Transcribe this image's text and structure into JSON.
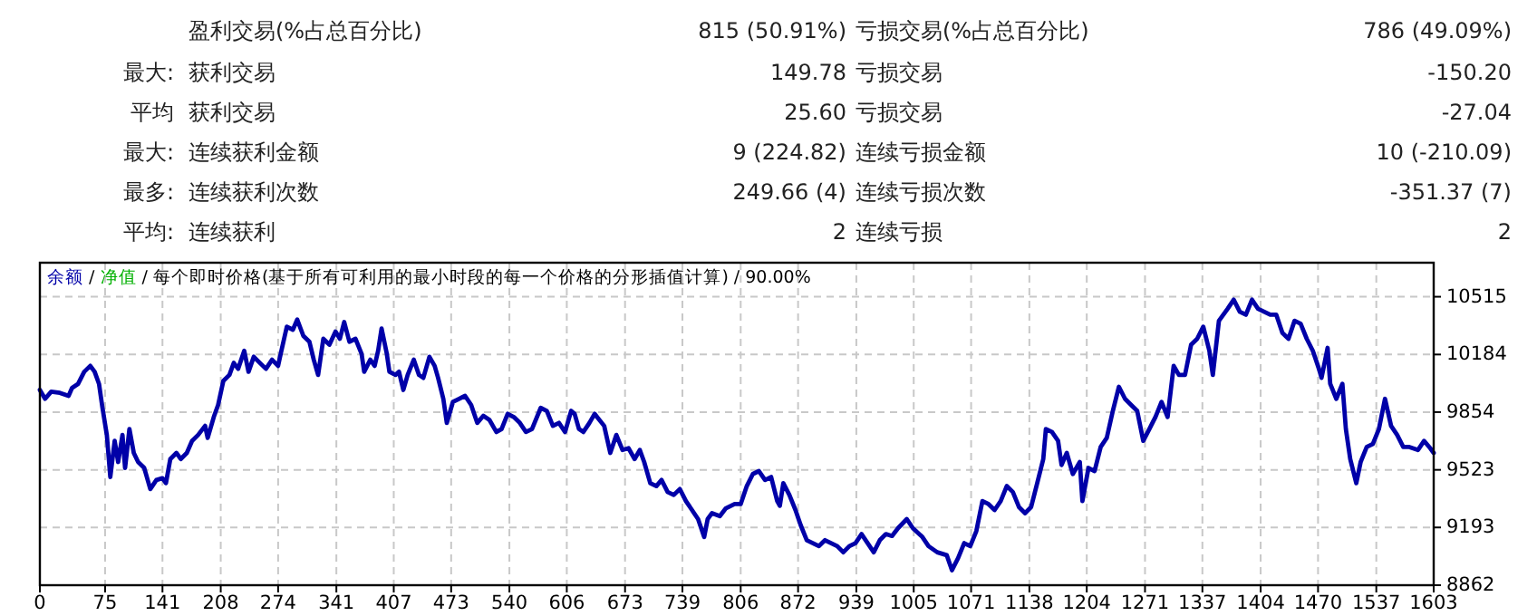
{
  "chart_data": {
    "type": "line",
    "subtitle": "/ 每个即时价格(基于所有可利用的最小时段的每一个价格的分形插值计算) / 90.00%",
    "legend": "top left",
    "grid": true,
    "xlim": [
      0,
      1603
    ],
    "ylim": [
      8862,
      10710
    ],
    "xticks": [
      0,
      75,
      141,
      208,
      274,
      341,
      407,
      473,
      540,
      606,
      673,
      739,
      806,
      872,
      939,
      1005,
      1071,
      1138,
      1204,
      1271,
      1337,
      1404,
      1470,
      1537,
      1603
    ],
    "yticks": [
      8862,
      9193,
      9523,
      9854,
      10184,
      10515
    ],
    "annotations": [
      "盈利交易(%占总百分比)",
      "815 (50.91%)",
      "亏损交易(%占总百分比)",
      "786 (49.09%)",
      "最大:",
      "获利交易",
      "149.78",
      "亏损交易",
      "-150.20",
      "平均",
      "获利交易",
      "25.60",
      "亏损交易",
      "-27.04",
      "最大:",
      "连续获利金额",
      "9 (224.82)",
      "连续亏损金额",
      "10 (-210.09)",
      "最多:",
      "连续获利次数",
      "249.66 (4)",
      "连续亏损次数",
      "-351.37 (7)",
      "平均:",
      "连续获利",
      "2",
      "连续亏损",
      "2",
      "/"
    ],
    "x": [
      0,
      6,
      13,
      23,
      33,
      37,
      44,
      51,
      58,
      63,
      68,
      72,
      77,
      81,
      86,
      90,
      95,
      98,
      103,
      108,
      113,
      120,
      127,
      134,
      141,
      145,
      150,
      157,
      162,
      169,
      175,
      182,
      190,
      193,
      200,
      205,
      211,
      218,
      223,
      228,
      235,
      240,
      246,
      253,
      260,
      267,
      274,
      277,
      284,
      291,
      296,
      303,
      310,
      315,
      320,
      326,
      333,
      340,
      345,
      350,
      356,
      363,
      370,
      373,
      380,
      385,
      389,
      393,
      399,
      402,
      409,
      413,
      418,
      423,
      430,
      436,
      441,
      448,
      454,
      458,
      464,
      468,
      475,
      482,
      489,
      496,
      503,
      510,
      517,
      525,
      531,
      538,
      545,
      552,
      559,
      566,
      576,
      583,
      590,
      597,
      604,
      611,
      615,
      620,
      625,
      632,
      638,
      642,
      649,
      656,
      663,
      670,
      677,
      684,
      690,
      695,
      702,
      709,
      715,
      722,
      729,
      736,
      743,
      750,
      757,
      764,
      768,
      773,
      782,
      789,
      799,
      806,
      813,
      820,
      827,
      834,
      841,
      848,
      851,
      855,
      862,
      869,
      875,
      882,
      889,
      896,
      903,
      910,
      917,
      924,
      931,
      938,
      945,
      952,
      959,
      966,
      973,
      980,
      987,
      997,
      1004,
      1015,
      1022,
      1032,
      1043,
      1049,
      1056,
      1063,
      1070,
      1077,
      1084,
      1091,
      1098,
      1105,
      1112,
      1119,
      1126,
      1133,
      1140,
      1147,
      1154,
      1157,
      1164,
      1171,
      1175,
      1181,
      1188,
      1196,
      1199,
      1206,
      1213,
      1220,
      1227,
      1234,
      1241,
      1248,
      1255,
      1262,
      1269,
      1276,
      1283,
      1290,
      1297,
      1304,
      1310,
      1317,
      1324,
      1331,
      1338,
      1345,
      1349,
      1356,
      1366,
      1373,
      1380,
      1387,
      1394,
      1401,
      1408,
      1415,
      1422,
      1429,
      1436,
      1443,
      1450,
      1457,
      1464,
      1471,
      1474,
      1481,
      1484,
      1491,
      1498,
      1502,
      1507,
      1514,
      1519,
      1526,
      1533,
      1540,
      1547,
      1554,
      1561,
      1568,
      1575,
      1585,
      1592,
      1599,
      1603
    ],
    "series": [
      {
        "name": "余额",
        "color": "#0000a8",
        "values": [
          9981,
          9930,
          9971,
          9964,
          9947,
          9992,
          10016,
          10085,
          10119,
          10085,
          10016,
          9878,
          9723,
          9482,
          9689,
          9568,
          9723,
          9534,
          9757,
          9620,
          9568,
          9534,
          9413,
          9465,
          9475,
          9447,
          9585,
          9620,
          9585,
          9620,
          9689,
          9723,
          9775,
          9706,
          9826,
          9895,
          10033,
          10067,
          10136,
          10102,
          10205,
          10085,
          10171,
          10136,
          10102,
          10154,
          10119,
          10188,
          10343,
          10326,
          10384,
          10291,
          10257,
          10154,
          10067,
          10274,
          10240,
          10315,
          10274,
          10370,
          10257,
          10274,
          10188,
          10085,
          10154,
          10119,
          10205,
          10333,
          10188,
          10085,
          10067,
          10085,
          9981,
          10067,
          10154,
          10067,
          10050,
          10171,
          10119,
          10050,
          9930,
          9792,
          9912,
          9930,
          9947,
          9895,
          9792,
          9833,
          9809,
          9740,
          9757,
          9844,
          9826,
          9792,
          9740,
          9757,
          9878,
          9861,
          9775,
          9792,
          9740,
          9861,
          9844,
          9757,
          9740,
          9792,
          9844,
          9819,
          9775,
          9620,
          9723,
          9637,
          9647,
          9585,
          9637,
          9568,
          9447,
          9430,
          9465,
          9396,
          9379,
          9413,
          9344,
          9293,
          9241,
          9138,
          9241,
          9275,
          9258,
          9303,
          9327,
          9327,
          9430,
          9499,
          9516,
          9465,
          9482,
          9344,
          9317,
          9447,
          9379,
          9293,
          9206,
          9120,
          9103,
          9086,
          9120,
          9103,
          9086,
          9051,
          9086,
          9103,
          9155,
          9103,
          9051,
          9120,
          9155,
          9144,
          9189,
          9241,
          9189,
          9138,
          9086,
          9051,
          9034,
          8948,
          9017,
          9103,
          9086,
          9172,
          9344,
          9327,
          9293,
          9344,
          9430,
          9396,
          9310,
          9275,
          9310,
          9447,
          9585,
          9757,
          9740,
          9689,
          9551,
          9620,
          9499,
          9568,
          9344,
          9534,
          9516,
          9654,
          9706,
          9861,
          9999,
          9930,
          9895,
          9861,
          9689,
          9757,
          9826,
          9912,
          9826,
          10119,
          10067,
          10067,
          10240,
          10274,
          10343,
          10205,
          10067,
          10377,
          10446,
          10498,
          10429,
          10412,
          10498,
          10446,
          10429,
          10412,
          10412,
          10308,
          10274,
          10377,
          10360,
          10274,
          10205,
          10102,
          10050,
          10222,
          10016,
          9930,
          10016,
          9757,
          9585,
          9447,
          9568,
          9654,
          9671,
          9757,
          9930,
          9775,
          9723,
          9654,
          9654,
          9637,
          9689,
          9647,
          9620
        ]
      },
      {
        "name": "净值",
        "color": "#00b000",
        "values": [
          null,
          null,
          null,
          null,
          null,
          null,
          null,
          null,
          null,
          null,
          null,
          null,
          null,
          null,
          null,
          null,
          null,
          null,
          null,
          null,
          null,
          null,
          null,
          null,
          null,
          null,
          null,
          null,
          null,
          null,
          null,
          null,
          null,
          null,
          null,
          null,
          null,
          null,
          null,
          null,
          null,
          null,
          null,
          null,
          null,
          null,
          null,
          null,
          null,
          null,
          null,
          null,
          null,
          null,
          null,
          null,
          null,
          null,
          null,
          null,
          null,
          null,
          null,
          null,
          null,
          null,
          null,
          null,
          null,
          null,
          null,
          null,
          null,
          null,
          null,
          null,
          null,
          null,
          null,
          null,
          null,
          null,
          null,
          null,
          null,
          null,
          null,
          null,
          null,
          null,
          null,
          null,
          null,
          null,
          null,
          null,
          null,
          null,
          null,
          null,
          null,
          null,
          null,
          null,
          null,
          null,
          null,
          null,
          null,
          null,
          null,
          null,
          null,
          null,
          null,
          null,
          null,
          null,
          null,
          null,
          null,
          null,
          null,
          null,
          null,
          null,
          null,
          null,
          null,
          null,
          null,
          null,
          null,
          null,
          null,
          null,
          null,
          null,
          null,
          null,
          null,
          null,
          null,
          null,
          null,
          null,
          null,
          null,
          null,
          null,
          null,
          null,
          null,
          null,
          null,
          null,
          null,
          null,
          null,
          null,
          null,
          null,
          null,
          null,
          null,
          null,
          null,
          null,
          null,
          null,
          null,
          null,
          null,
          null,
          null,
          null,
          null,
          null,
          null,
          null,
          null,
          null,
          null,
          null,
          null,
          null,
          null,
          null,
          null,
          null,
          null,
          null,
          null,
          null,
          null,
          null,
          null,
          null,
          null,
          null,
          null,
          null,
          null,
          null,
          null,
          null,
          null,
          null,
          null,
          null,
          null,
          null,
          null,
          null,
          null,
          null,
          null,
          null,
          null,
          null,
          null,
          null,
          null,
          null,
          null,
          null,
          null,
          null,
          null,
          null,
          null,
          null,
          null,
          null,
          null,
          null,
          null,
          null,
          null,
          null,
          null,
          null,
          null,
          null,
          null,
          null,
          null,
          null,
          null
        ]
      }
    ]
  }
}
